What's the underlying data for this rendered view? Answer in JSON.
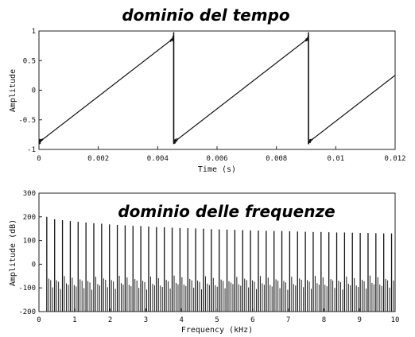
{
  "chart_data": [
    {
      "type": "line",
      "title": "dominio del tempo",
      "xlabel": "Time (s)",
      "ylabel": "Amplitude",
      "xlim": [
        0,
        0.012
      ],
      "ylim": [
        -1,
        1
      ],
      "x_ticks": [
        "0",
        "0.002",
        "0.004",
        "0.006",
        "0.008",
        "0.01",
        "0.012"
      ],
      "y_ticks": [
        "1",
        "0.5",
        "0",
        "-0.5",
        "-1"
      ],
      "grid": false,
      "waveform": "sawtooth",
      "period_s": 0.00454,
      "peak": 0.88,
      "trough": -0.88,
      "series": [
        {
          "x": [
            0,
            0.00454,
            0.00454,
            0.00908,
            0.00908,
            0.012
          ],
          "y": [
            -0.88,
            0.88,
            -0.88,
            0.88,
            -0.88,
            0.25
          ]
        }
      ]
    },
    {
      "type": "line",
      "title": "dominio delle frequenze",
      "xlabel": "Frequency (kHz)",
      "ylabel": "Amplitude (dB)",
      "xlim": [
        0,
        10
      ],
      "ylim": [
        -200,
        300
      ],
      "x_ticks": [
        "0",
        "1",
        "2",
        "3",
        "4",
        "5",
        "6",
        "7",
        "8",
        "9",
        "10"
      ],
      "y_ticks": [
        "300",
        "200",
        "100",
        "0",
        "-100",
        "-200"
      ],
      "grid": false,
      "harmonic_spacing_khz": 0.22,
      "harmonic_peaks_db": [
        200,
        190,
        186,
        182,
        179,
        176,
        173,
        171,
        168,
        166,
        164,
        162,
        161,
        159,
        157,
        156,
        154,
        153,
        152,
        151,
        150,
        148,
        147,
        146,
        145,
        144,
        143,
        142,
        141,
        140,
        140,
        139,
        138,
        137,
        136,
        136,
        135,
        134,
        134,
        133,
        132,
        132,
        131,
        130,
        130
      ],
      "noise_floor_db": -200
    }
  ]
}
